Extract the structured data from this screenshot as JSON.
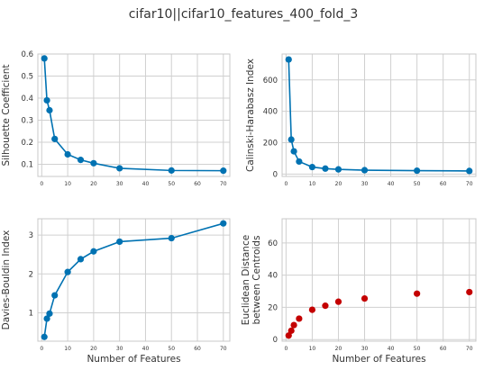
{
  "figure": {
    "title": "cifar10||cifar10_features_400_fold_3",
    "line_color": "#0072B2",
    "scatter_color": "#C40000"
  },
  "chart_data": [
    {
      "type": "line",
      "title": "",
      "xlabel": "",
      "ylabel": "Silhouette Coefficient",
      "x": [
        1,
        2,
        3,
        5,
        10,
        15,
        20,
        30,
        50,
        70
      ],
      "y": [
        0.58,
        0.39,
        0.345,
        0.215,
        0.145,
        0.12,
        0.105,
        0.082,
        0.072,
        0.071
      ],
      "xlim": [
        -1.5,
        72.5
      ],
      "ylim": [
        0.045,
        0.6
      ],
      "xticks": [
        0,
        10,
        20,
        30,
        40,
        50,
        60,
        70
      ],
      "yticks": [
        0.1,
        0.2,
        0.3,
        0.4,
        0.5,
        0.6
      ],
      "grid": true
    },
    {
      "type": "line",
      "title": "",
      "xlabel": "",
      "ylabel": "Calinski-Harabasz Index",
      "x": [
        1,
        2,
        3,
        5,
        10,
        15,
        20,
        30,
        50,
        70
      ],
      "y": [
        730,
        220,
        145,
        80,
        45,
        35,
        30,
        25,
        22,
        20
      ],
      "xlim": [
        -1.5,
        72.5
      ],
      "ylim": [
        -15,
        765
      ],
      "xticks": [
        0,
        10,
        20,
        30,
        40,
        50,
        60,
        70
      ],
      "yticks": [
        0,
        200,
        400,
        600
      ],
      "grid": true
    },
    {
      "type": "line",
      "title": "",
      "xlabel": "Number of Features",
      "ylabel": "Davies-Bouldin Index",
      "x": [
        1,
        2,
        3,
        5,
        10,
        15,
        20,
        30,
        50,
        70
      ],
      "y": [
        0.38,
        0.85,
        0.98,
        1.45,
        2.05,
        2.38,
        2.58,
        2.83,
        2.92,
        3.3
      ],
      "xlim": [
        -1.5,
        72.5
      ],
      "ylim": [
        0.27,
        3.42
      ],
      "xticks": [
        0,
        10,
        20,
        30,
        40,
        50,
        60,
        70
      ],
      "yticks": [
        1,
        2,
        3
      ],
      "grid": true
    },
    {
      "type": "scatter",
      "title": "",
      "xlabel": "Number of Features",
      "ylabel": "Euclidean Distance between Centroids",
      "ylabel_lines": [
        "Euclidean Distance",
        "between Centroids"
      ],
      "x": [
        1,
        2,
        3,
        5,
        10,
        15,
        20,
        30,
        50,
        70
      ],
      "y": [
        2.5,
        5.5,
        9,
        13,
        18.5,
        21,
        23.5,
        25.5,
        28.5,
        29.5
      ],
      "xlim": [
        -1.5,
        72.5
      ],
      "ylim": [
        -1,
        75
      ],
      "xticks": [
        0,
        10,
        20,
        30,
        40,
        50,
        60,
        70
      ],
      "yticks": [
        0,
        20,
        40,
        60
      ],
      "grid": true
    }
  ]
}
